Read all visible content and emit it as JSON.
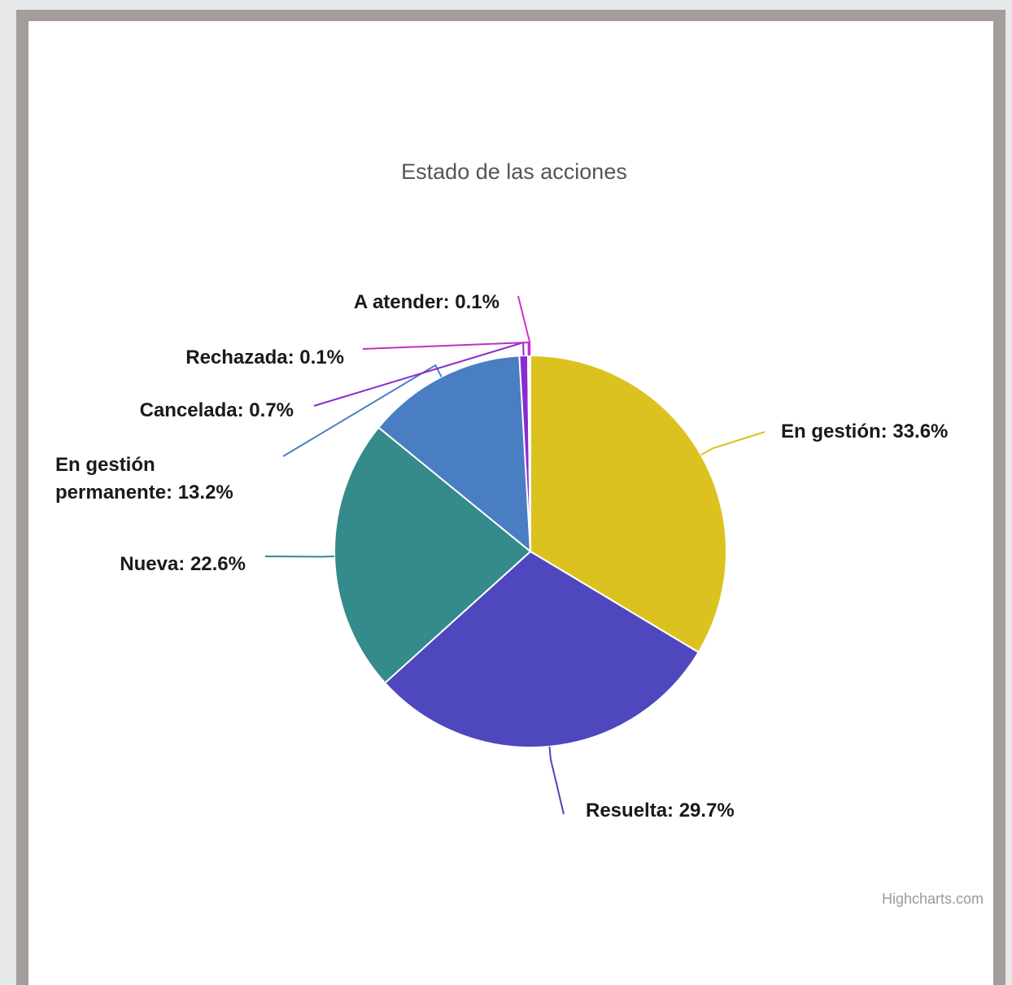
{
  "chart_data": {
    "type": "pie",
    "title": "Estado de las acciones",
    "credit": "Highcharts.com",
    "slices": [
      {
        "name": "En gestión",
        "value": 33.6,
        "label": "En gestión: 33.6%",
        "color": "#dcc21f"
      },
      {
        "name": "Resuelta",
        "value": 29.7,
        "label": "Resuelta: 29.7%",
        "color": "#4f47bd"
      },
      {
        "name": "Nueva",
        "value": 22.6,
        "label": "Nueva: 22.6%",
        "color": "#358a8b"
      },
      {
        "name": "En gestión permanente",
        "value": 13.2,
        "label_lines": [
          "En gestión",
          "permanente: 13.2%"
        ],
        "color": "#4a7ec2"
      },
      {
        "name": "Cancelada",
        "value": 0.7,
        "label": "Cancelada: 0.7%",
        "color": "#8a2bd0"
      },
      {
        "name": "Rechazada",
        "value": 0.1,
        "label": "Rechazada: 0.1%",
        "color": "#c02ec4"
      },
      {
        "name": "A atender",
        "value": 0.1,
        "label": "A atender: 0.1%",
        "color": "#d62bd0"
      }
    ]
  }
}
